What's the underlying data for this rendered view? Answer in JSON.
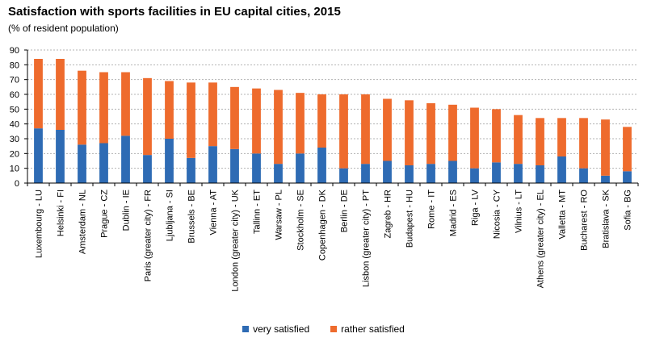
{
  "chart_data": {
    "type": "bar",
    "stacked": true,
    "title": "Satisfaction with sports facilities in EU capital cities, 2015",
    "subtitle": "(% of resident population)",
    "categories": [
      "Luxembourg - LU",
      "Helsinki - FI",
      "Amsterdam - NL",
      "Prague - CZ",
      "Dublin - IE",
      "Paris (greater city) - FR",
      "Ljubljana - SI",
      "Brussels - BE",
      "Vienna - AT",
      "London (greater city) - UK",
      "Tallinn - ET",
      "Warsaw - PL",
      "Stockholm - SE",
      "Copenhagen - DK",
      "Berlin - DE",
      "Lisbon (greater city) - PT",
      "Zagreb - HR",
      "Budapest - HU",
      "Rome - IT",
      "Madrid - ES",
      "Riga - LV",
      "Nicosia - CY",
      "Vilnius - LT",
      "Athens (greater city) - EL",
      "Valletta - MT",
      "Bucharest - RO",
      "Bratislava - SK",
      "Sofia - BG"
    ],
    "series": [
      {
        "name": "very satisfied",
        "color": "#2e6bb4",
        "values": [
          37,
          36,
          26,
          27,
          32,
          19,
          30,
          17,
          25,
          23,
          20,
          13,
          20,
          24,
          10,
          13,
          15,
          12,
          13,
          15,
          10,
          14,
          13,
          12,
          18,
          10,
          5,
          8
        ]
      },
      {
        "name": "rather satisfied",
        "color": "#ee6b2d",
        "values": [
          47,
          48,
          50,
          48,
          43,
          52,
          39,
          51,
          43,
          42,
          44,
          50,
          41,
          36,
          50,
          47,
          42,
          44,
          41,
          38,
          41,
          36,
          33,
          32,
          26,
          34,
          38,
          30
        ]
      }
    ],
    "ylim": [
      0,
      90
    ],
    "yticks": [
      0,
      10,
      20,
      30,
      40,
      50,
      60,
      70,
      80,
      90
    ],
    "grid": true,
    "legend_position": "bottom-center"
  }
}
